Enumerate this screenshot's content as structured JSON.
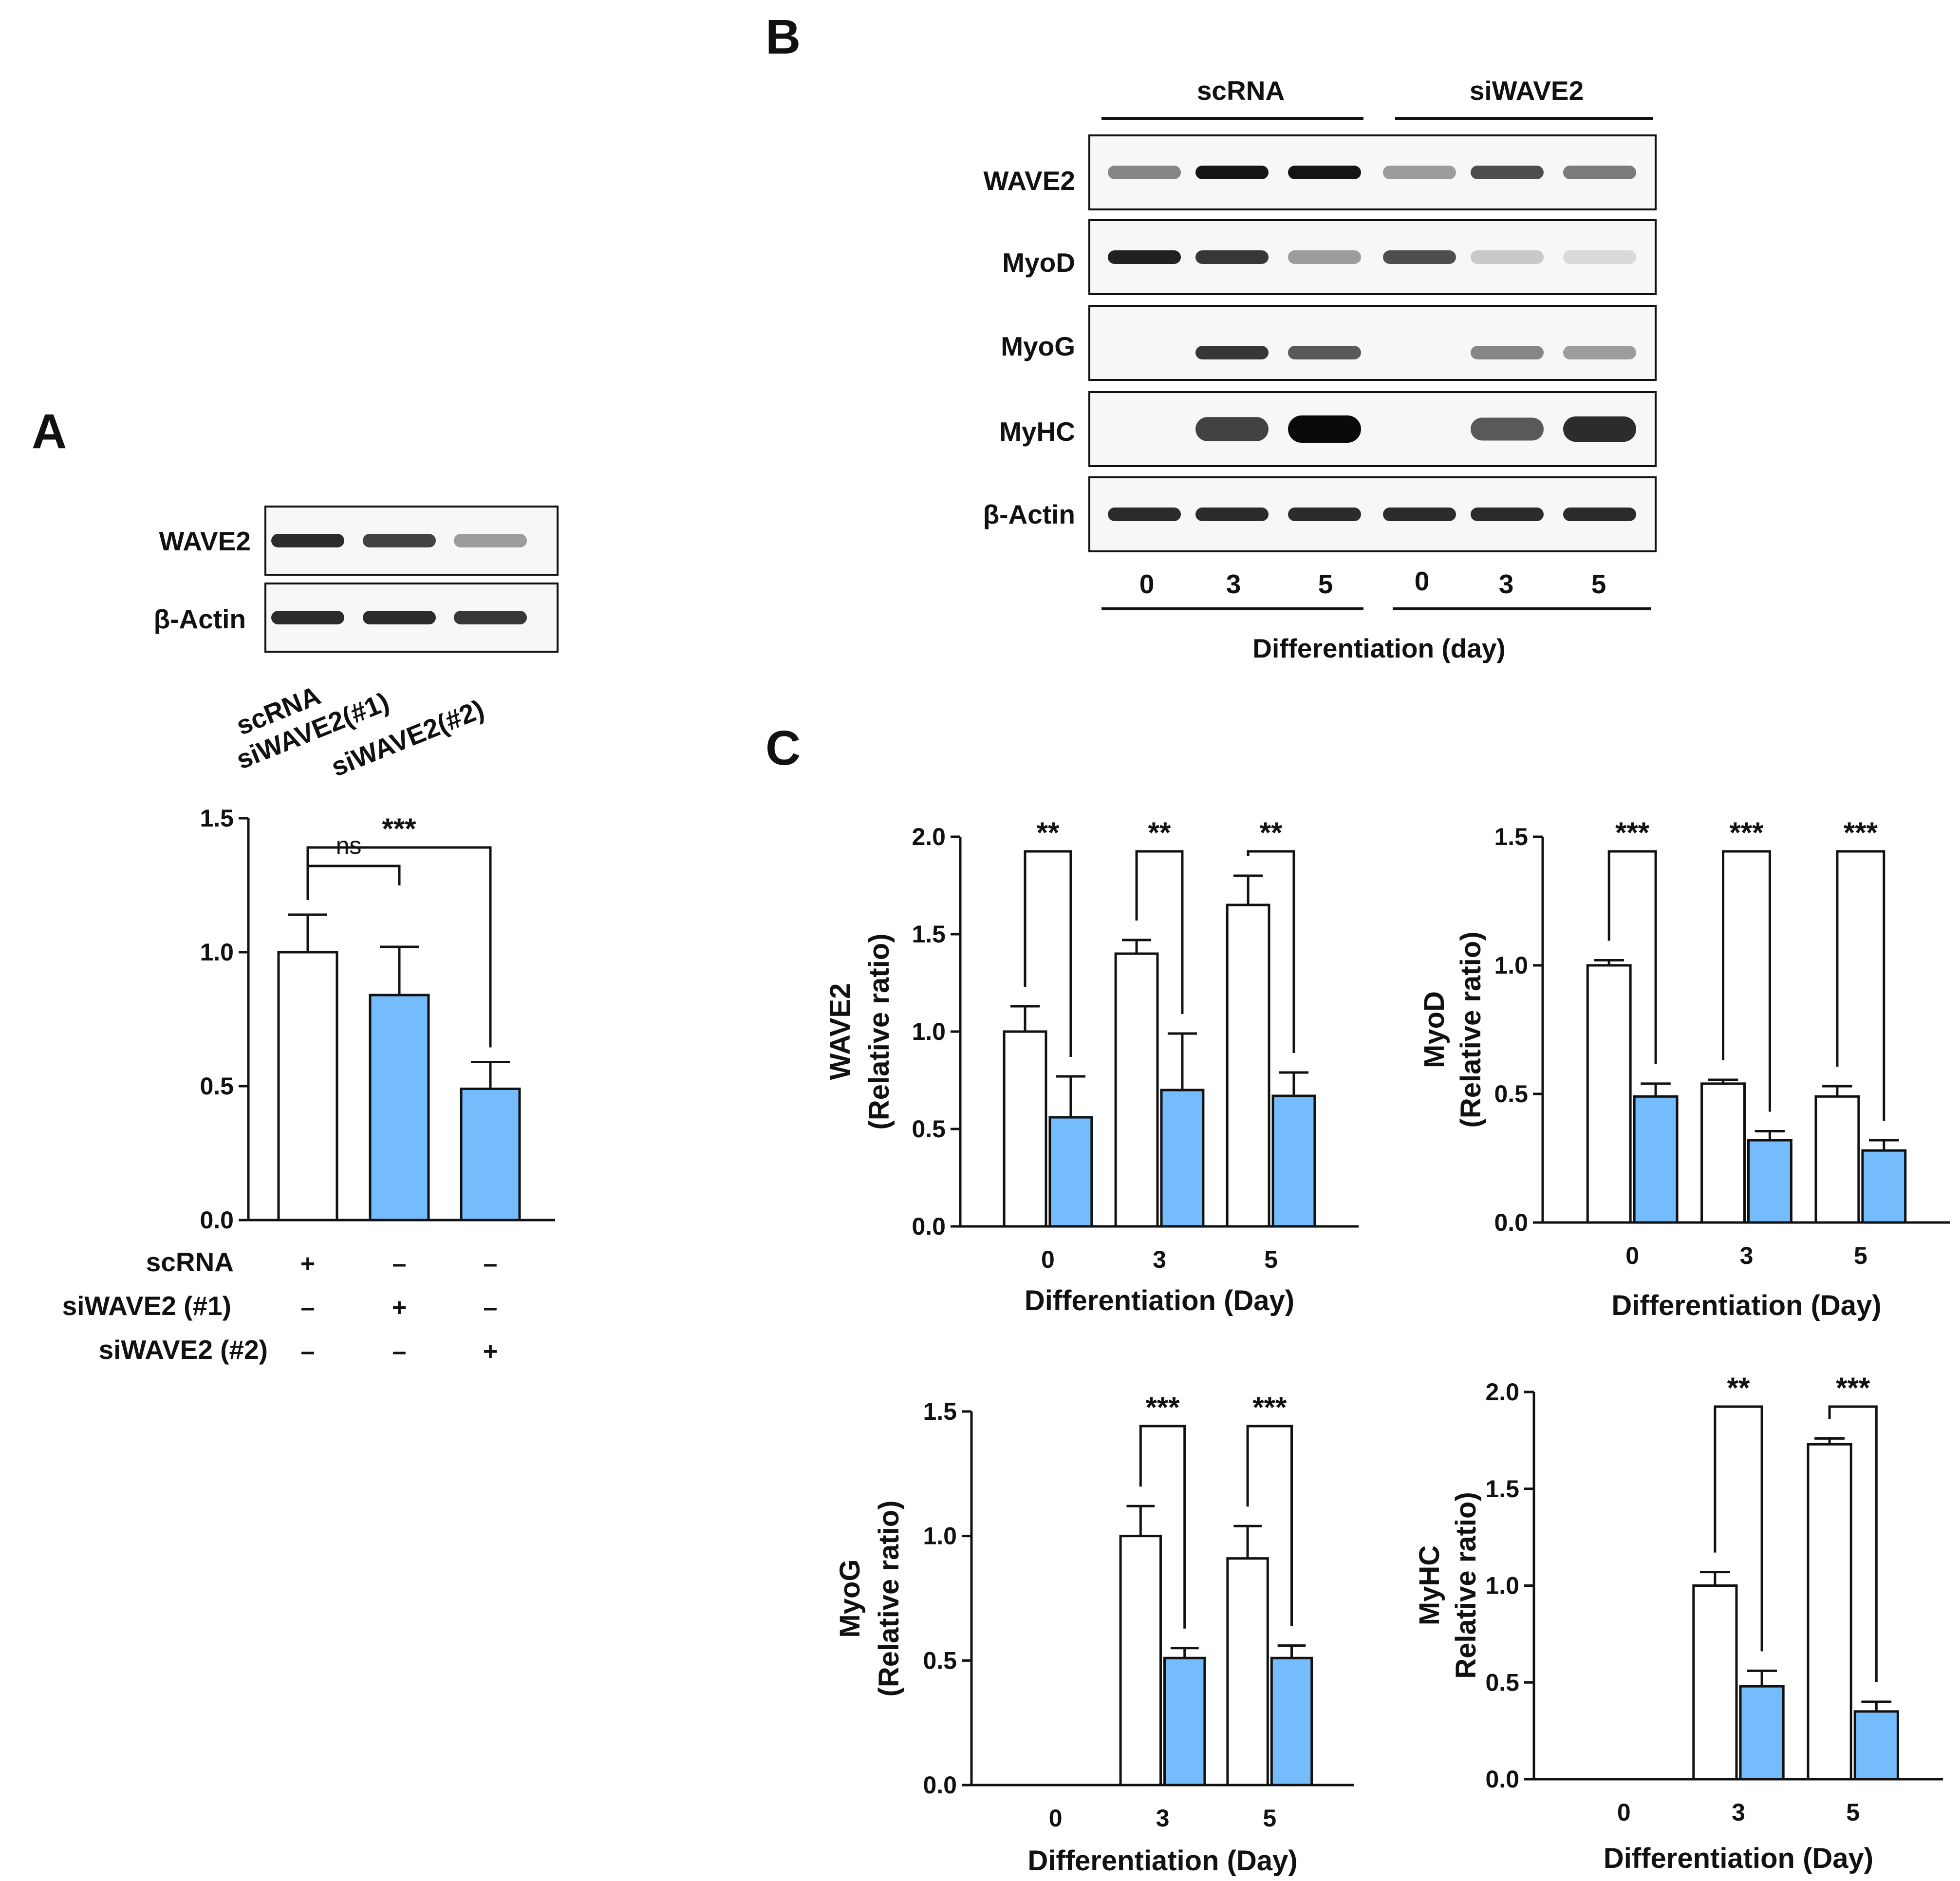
{
  "panels": {
    "A": {
      "letter": "A",
      "blot": {
        "rows": [
          "WAVE2",
          "β-Actin"
        ],
        "lanes": [
          "scRNA",
          "siWAVE2(#1)",
          "siWAVE2(#2)"
        ],
        "band_intensity": [
          [
            0.85,
            0.75,
            0.35
          ],
          [
            0.85,
            0.85,
            0.8
          ]
        ]
      },
      "table": {
        "rows": [
          {
            "label": "scRNA",
            "cells": [
              "+",
              "–",
              "–"
            ]
          },
          {
            "label": "siWAVE2 (#1)",
            "cells": [
              "–",
              "+",
              "–"
            ]
          },
          {
            "label": "siWAVE2 (#2)",
            "cells": [
              "–",
              "–",
              "+"
            ]
          }
        ]
      }
    },
    "B": {
      "letter": "B",
      "groups": [
        "scRNA",
        "siWAVE2"
      ],
      "rows": [
        "WAVE2",
        "MyoD",
        "MyoG",
        "MyHC",
        "β-Actin"
      ],
      "lanes": [
        "0",
        "3",
        "5",
        "0",
        "3",
        "5"
      ],
      "xlabel": "Differentiation (day)",
      "band_intensity": [
        [
          0.45,
          0.95,
          0.95,
          0.35,
          0.7,
          0.5
        ],
        [
          0.9,
          0.8,
          0.35,
          0.7,
          0.15,
          0.08
        ],
        [
          0.0,
          0.8,
          0.65,
          0.0,
          0.45,
          0.35
        ],
        [
          0.0,
          0.75,
          1.0,
          0.0,
          0.65,
          0.85
        ],
        [
          0.85,
          0.85,
          0.85,
          0.85,
          0.85,
          0.85
        ]
      ]
    },
    "C": {
      "letter": "C"
    }
  },
  "colors": {
    "control": "#ffffff",
    "knockdown": "#74bcfb",
    "axis": "#111111"
  },
  "chart_data": [
    {
      "id": "A",
      "type": "bar",
      "categories": [
        "scRNA",
        "siWAVE2 (#1)",
        "siWAVE2 (#2)"
      ],
      "values": [
        1.0,
        0.84,
        0.49
      ],
      "errors": [
        0.14,
        0.18,
        0.1
      ],
      "bar_colors": [
        "#ffffff",
        "#74bcfb",
        "#74bcfb"
      ],
      "ylim": [
        0,
        1.5
      ],
      "yticks": [
        "0.0",
        "0.5",
        "1.0",
        "1.5"
      ],
      "ylabel": "",
      "xlabel": "",
      "brackets": [
        {
          "from": 0,
          "to": 1,
          "label": "ns"
        },
        {
          "from": 0,
          "to": 2,
          "label": "***"
        }
      ]
    },
    {
      "id": "C1",
      "type": "bar",
      "categories": [
        "0",
        "3",
        "5"
      ],
      "series": [
        {
          "values": [
            1.0,
            1.4,
            1.65
          ],
          "errors": [
            0.13,
            0.07,
            0.15
          ]
        },
        {
          "values": [
            0.56,
            0.7,
            0.67
          ],
          "errors": [
            0.21,
            0.29,
            0.12
          ]
        }
      ],
      "ylim": [
        0,
        2.0
      ],
      "yticks": [
        "0.0",
        "0.5",
        "1.0",
        "1.5",
        "2.0"
      ],
      "ylabel": "WAVE2",
      "ylabel2": "(Relative ratio)",
      "xlabel": "Differentiation (Day)",
      "sig": [
        "**",
        "**",
        "**"
      ]
    },
    {
      "id": "C2",
      "type": "bar",
      "categories": [
        "0",
        "3",
        "5"
      ],
      "series": [
        {
          "values": [
            1.0,
            0.54,
            0.49
          ],
          "errors": [
            0.02,
            0.015,
            0.04
          ]
        },
        {
          "values": [
            0.49,
            0.32,
            0.28
          ],
          "errors": [
            0.05,
            0.035,
            0.04
          ]
        }
      ],
      "ylim": [
        0,
        1.5
      ],
      "yticks": [
        "0.0",
        "0.5",
        "1.0",
        "1.5"
      ],
      "ylabel": "MyoD",
      "ylabel2": "(Relative ratio)",
      "xlabel": "Differentiation (Day)",
      "sig": [
        "***",
        "***",
        "***"
      ]
    },
    {
      "id": "C3",
      "type": "bar",
      "categories": [
        "0",
        "3",
        "5"
      ],
      "series": [
        {
          "values": [
            0.0,
            1.0,
            0.91
          ],
          "errors": [
            0,
            0.12,
            0.13
          ]
        },
        {
          "values": [
            0.0,
            0.51,
            0.51
          ],
          "errors": [
            0,
            0.04,
            0.05
          ]
        }
      ],
      "ylim": [
        0,
        1.5
      ],
      "yticks": [
        "0.0",
        "0.5",
        "1.0",
        "1.5"
      ],
      "ylabel": "MyoG",
      "ylabel2": "(Relative ratio)",
      "xlabel": "Differentiation (Day)",
      "sig": [
        "",
        "***",
        "***"
      ]
    },
    {
      "id": "C4",
      "type": "bar",
      "categories": [
        "0",
        "3",
        "5"
      ],
      "series": [
        {
          "values": [
            0.0,
            1.0,
            1.73
          ],
          "errors": [
            0,
            0.07,
            0.03
          ]
        },
        {
          "values": [
            0.0,
            0.48,
            0.35
          ],
          "errors": [
            0,
            0.08,
            0.05
          ]
        }
      ],
      "ylim": [
        0,
        2.0
      ],
      "yticks": [
        "0.0",
        "0.5",
        "1.0",
        "1.5",
        "2.0"
      ],
      "ylabel": "MyHC",
      "ylabel2": "Relative ratio)",
      "xlabel": "Differentiation (Day)",
      "sig": [
        "",
        "**",
        "***"
      ]
    }
  ]
}
